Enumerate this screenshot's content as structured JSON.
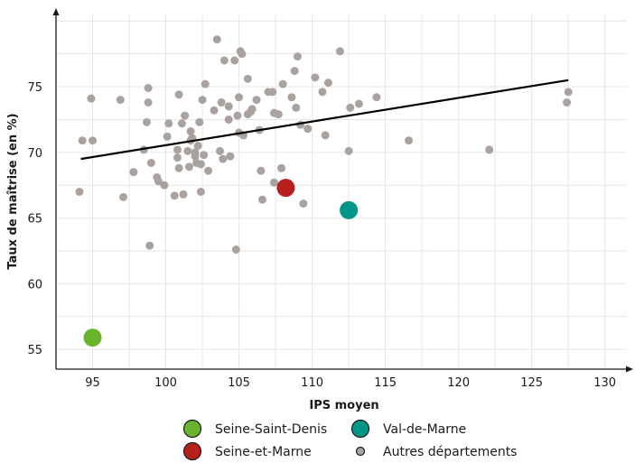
{
  "chart_data": {
    "type": "scatter",
    "title": "",
    "xlabel": "IPS moyen",
    "ylabel": "Taux de maîtrise (en %)",
    "xlim": [
      92.5,
      131.5
    ],
    "ylim": [
      53.5,
      80.5
    ],
    "x_ticks": [
      95,
      100,
      105,
      110,
      115,
      120,
      125,
      130
    ],
    "y_ticks": [
      55,
      60,
      65,
      70,
      75
    ],
    "grid": true,
    "legend_position": "bottom",
    "trend_line": {
      "x": [
        94.2,
        127.5
      ],
      "y": [
        69.5,
        75.5
      ],
      "color": "#000000"
    },
    "highlights": [
      {
        "name": "Seine-Saint-Denis",
        "x": 95.0,
        "y": 55.9,
        "color": "#6ab42d"
      },
      {
        "name": "Seine-et-Marne",
        "x": 108.2,
        "y": 67.3,
        "color": "#b8201e"
      },
      {
        "name": "Val-de-Marne",
        "x": 112.5,
        "y": 65.6,
        "color": "#00968a"
      }
    ],
    "others": {
      "name": "Autres départements",
      "color": "#aaa29e",
      "points": [
        [
          94.1,
          67.0
        ],
        [
          94.3,
          70.9
        ],
        [
          94.9,
          74.1
        ],
        [
          95.0,
          70.9
        ],
        [
          96.9,
          74.0
        ],
        [
          97.1,
          66.6
        ],
        [
          97.8,
          68.5
        ],
        [
          98.5,
          70.2
        ],
        [
          98.7,
          72.3
        ],
        [
          98.8,
          74.9
        ],
        [
          98.8,
          73.8
        ],
        [
          98.9,
          62.9
        ],
        [
          99.0,
          69.2
        ],
        [
          99.4,
          68.1
        ],
        [
          99.5,
          67.8
        ],
        [
          99.9,
          67.5
        ],
        [
          100.1,
          71.2
        ],
        [
          100.2,
          72.2
        ],
        [
          100.6,
          66.7
        ],
        [
          100.8,
          69.6
        ],
        [
          100.8,
          70.2
        ],
        [
          100.9,
          68.8
        ],
        [
          100.9,
          74.4
        ],
        [
          101.1,
          72.2
        ],
        [
          101.2,
          66.8
        ],
        [
          101.3,
          72.8
        ],
        [
          101.5,
          70.1
        ],
        [
          101.6,
          68.9
        ],
        [
          101.7,
          70.9
        ],
        [
          101.7,
          71.6
        ],
        [
          101.8,
          71.1
        ],
        [
          102.0,
          69.7
        ],
        [
          102.0,
          70.0
        ],
        [
          102.1,
          69.2
        ],
        [
          102.2,
          70.5
        ],
        [
          102.3,
          72.3
        ],
        [
          102.4,
          67.0
        ],
        [
          102.4,
          69.1
        ],
        [
          102.5,
          74.0
        ],
        [
          102.6,
          69.8
        ],
        [
          102.7,
          75.2
        ],
        [
          102.9,
          68.6
        ],
        [
          103.3,
          73.2
        ],
        [
          103.5,
          78.6
        ],
        [
          103.7,
          70.1
        ],
        [
          103.8,
          73.8
        ],
        [
          103.9,
          69.5
        ],
        [
          104.0,
          77.0
        ],
        [
          104.3,
          72.5
        ],
        [
          104.3,
          73.5
        ],
        [
          104.4,
          69.7
        ],
        [
          104.7,
          77.0
        ],
        [
          104.8,
          62.6
        ],
        [
          104.9,
          72.8
        ],
        [
          105.0,
          71.5
        ],
        [
          105.0,
          74.2
        ],
        [
          105.1,
          77.7
        ],
        [
          105.2,
          77.5
        ],
        [
          105.3,
          71.3
        ],
        [
          105.6,
          75.6
        ],
        [
          105.6,
          72.9
        ],
        [
          105.8,
          73.1
        ],
        [
          105.9,
          73.3
        ],
        [
          106.2,
          74.0
        ],
        [
          106.4,
          71.7
        ],
        [
          106.5,
          68.6
        ],
        [
          106.6,
          66.4
        ],
        [
          107.0,
          74.6
        ],
        [
          107.3,
          74.6
        ],
        [
          107.4,
          73.0
        ],
        [
          107.4,
          67.7
        ],
        [
          107.7,
          72.9
        ],
        [
          107.9,
          68.8
        ],
        [
          108.0,
          75.2
        ],
        [
          108.6,
          74.2
        ],
        [
          108.8,
          76.2
        ],
        [
          108.9,
          73.4
        ],
        [
          109.0,
          77.3
        ],
        [
          109.2,
          72.1
        ],
        [
          109.4,
          66.1
        ],
        [
          109.7,
          71.8
        ],
        [
          110.2,
          75.7
        ],
        [
          110.7,
          74.6
        ],
        [
          110.9,
          71.3
        ],
        [
          111.1,
          75.3
        ],
        [
          111.9,
          77.7
        ],
        [
          112.5,
          70.1
        ],
        [
          112.6,
          73.4
        ],
        [
          113.2,
          73.7
        ],
        [
          114.4,
          74.2
        ],
        [
          116.6,
          70.9
        ],
        [
          122.1,
          70.2
        ],
        [
          127.4,
          73.8
        ],
        [
          127.5,
          74.6
        ]
      ]
    }
  }
}
